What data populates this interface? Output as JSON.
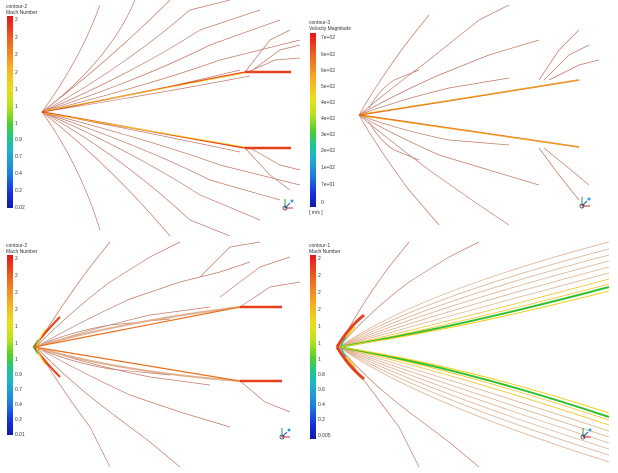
{
  "panels": [
    {
      "title": "contour-2",
      "subtitle": "Mach Number",
      "ticks": [
        "2",
        "2",
        "2",
        "2",
        "1",
        "1",
        "1",
        "0.9",
        "0.7",
        "0.4",
        "0.2",
        "0.02"
      ],
      "unit": ""
    },
    {
      "title": "contour-3",
      "subtitle": "Velocity Magnitude",
      "ticks": [
        "7e+02",
        "6e+02",
        "6e+02",
        "5e+02",
        "4e+02",
        "4e+02",
        "3e+02",
        "2e+02",
        "1e+02",
        "7e+01",
        "0"
      ],
      "unit": "[ m/s ]"
    },
    {
      "title": "contour-2",
      "subtitle": "Mach Number",
      "ticks": [
        "2",
        "2",
        "2",
        "2",
        "1",
        "1",
        "1",
        "0.9",
        "0.7",
        "0.4",
        "0.2",
        "0.01"
      ],
      "unit": ""
    },
    {
      "title": "contour-1",
      "subtitle": "Mach Number",
      "ticks": [
        "2",
        "2",
        "2",
        "2",
        "1",
        "1",
        "1",
        "0.8",
        "0.6",
        "0.4",
        "0.2",
        "0.005"
      ],
      "unit": ""
    }
  ],
  "colors": {
    "contour": "#c47a6a",
    "contour_light": "#e0b090",
    "wall": "#e8401a",
    "shock_yellow": "#f0d020",
    "shock_green": "#30c030"
  },
  "icons": [
    "axis-triad-icon"
  ]
}
